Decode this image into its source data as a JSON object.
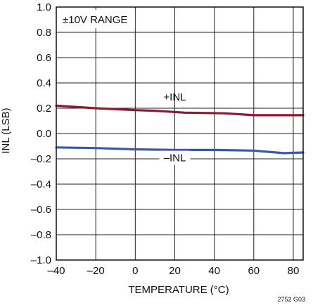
{
  "chart_data": {
    "type": "line",
    "xlabel": "TEMPERATURE (°C)",
    "ylabel": "INL (LSB)",
    "xlim": [
      -40,
      85
    ],
    "ylim": [
      -1.0,
      1.0
    ],
    "grid": true,
    "x_ticks": [
      -40,
      -20,
      0,
      20,
      40,
      60,
      80
    ],
    "x_tick_labels": [
      "–40",
      "–20",
      "0",
      "20",
      "40",
      "60",
      "80"
    ],
    "y_ticks": [
      1.0,
      0.8,
      0.6,
      0.4,
      0.2,
      0.0,
      -0.2,
      -0.4,
      -0.6,
      -0.8,
      -1.0
    ],
    "y_tick_labels": [
      "1.0",
      "0.8",
      "0.6",
      "0.4",
      "0.2",
      "0.0",
      "–0.2",
      "–0.4",
      "–0.6",
      "–0.8",
      "–1.0"
    ],
    "series": [
      {
        "name": "+INL",
        "color": "#8b1a32",
        "x": [
          -40,
          -20,
          0,
          10,
          25,
          45,
          60,
          85
        ],
        "y": [
          0.22,
          0.2,
          0.185,
          0.18,
          0.165,
          0.16,
          0.145,
          0.145
        ]
      },
      {
        "name": "–INL",
        "color": "#3a5aa8",
        "x": [
          -40,
          -20,
          0,
          20,
          40,
          60,
          75,
          85
        ],
        "y": [
          -0.11,
          -0.115,
          -0.125,
          -0.13,
          -0.13,
          -0.135,
          -0.155,
          -0.15
        ]
      }
    ],
    "annotations": [
      {
        "text": "±10V RANGE"
      },
      {
        "text": "2752 G03"
      }
    ]
  }
}
